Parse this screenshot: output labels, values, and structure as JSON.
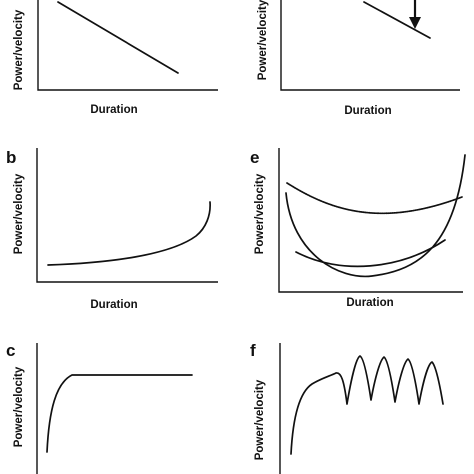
{
  "figure": {
    "x_axis_label": "Duration",
    "y_axis_label": "Power/velocity",
    "panels": [
      {
        "id": "a",
        "letter": "",
        "shape": "linear-decline",
        "show_xlabel": true,
        "show_ylabel": true
      },
      {
        "id": "a2",
        "letter": "",
        "shape": "linear-decline-with-arrow",
        "show_xlabel": true,
        "show_ylabel": true
      },
      {
        "id": "b",
        "letter": "b",
        "shape": "exponential-increase",
        "show_xlabel": true,
        "show_ylabel": true
      },
      {
        "id": "e",
        "letter": "e",
        "shape": "u-shaped-curves",
        "curve_colors": [
          "#333333",
          "#888888",
          "#bbbbbb"
        ],
        "show_xlabel": true,
        "show_ylabel": true
      },
      {
        "id": "c",
        "letter": "c",
        "shape": "rise-to-plateau",
        "show_xlabel": false,
        "show_ylabel": true
      },
      {
        "id": "f",
        "letter": "f",
        "shape": "rise-then-oscillation",
        "show_xlabel": false,
        "show_ylabel": true
      }
    ]
  }
}
